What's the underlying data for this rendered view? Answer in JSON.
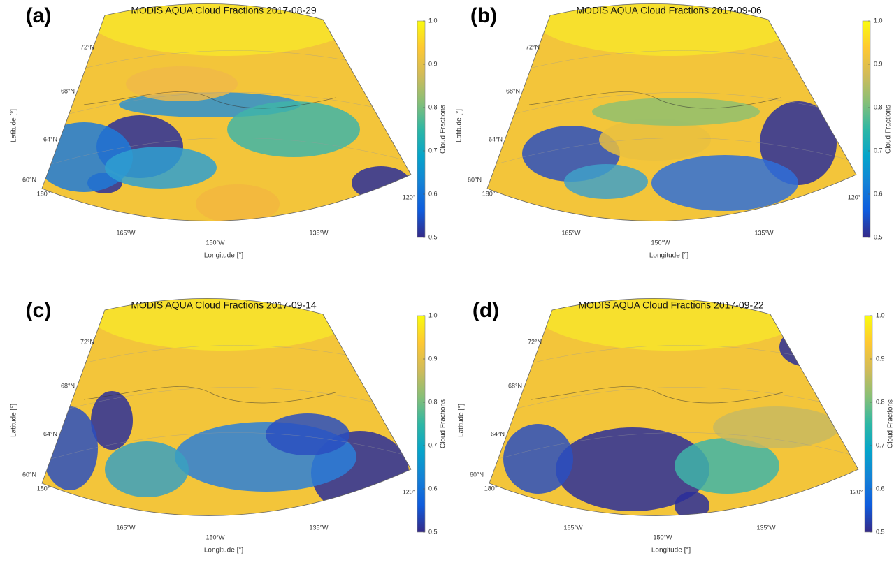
{
  "chart_data": [
    {
      "type": "map",
      "panel_label": "(a)",
      "title": "MODIS AQUA Cloud Fractions 2017-08-29",
      "xlabel": "Longitude [°]",
      "ylabel": "Latitude [°]",
      "colorbar_label": "Cloud Fractions",
      "lat_labels": [
        "72°N",
        "68°N",
        "64°N",
        "60°N"
      ],
      "lon_labels": [
        "180°",
        "165°W",
        "150°W",
        "135°W",
        "120°"
      ],
      "colormap": [
        "#352a87",
        "#0f5cdd",
        "#1481d6",
        "#06a4ca",
        "#2eb7a4",
        "#87bf77",
        "#d1bb59",
        "#fec832",
        "#f9fb0e"
      ],
      "ylim": [
        0.5,
        1
      ],
      "yticks": [
        0.5,
        0.6,
        0.7,
        0.8,
        0.9,
        {
          "value": 1,
          "label": "1.0"
        }
      ]
    },
    {
      "type": "map",
      "panel_label": "(b)",
      "title": "MODIS AQUA Cloud Fractions 2017-09-06",
      "xlabel": "Longitude [°]",
      "ylabel": "Latitude [°]",
      "colorbar_label": "Cloud Fractions",
      "lat_labels": [
        "72°N",
        "68°N",
        "64°N",
        "60°N"
      ],
      "lon_labels": [
        "180°",
        "165°W",
        "150°W",
        "135°W",
        "120°"
      ],
      "colormap": [
        "#352a87",
        "#0f5cdd",
        "#1481d6",
        "#06a4ca",
        "#2eb7a4",
        "#87bf77",
        "#d1bb59",
        "#fec832",
        "#f9fb0e"
      ],
      "ylim": [
        0.5,
        1
      ],
      "yticks": [
        0.5,
        0.6,
        0.7,
        0.8,
        0.9,
        {
          "value": 1,
          "label": "1.0"
        }
      ]
    },
    {
      "type": "map",
      "panel_label": "(c)",
      "title": "MODIS AQUA Cloud Fractions 2017-09-14",
      "xlabel": "Longitude [°]",
      "ylabel": "Latitude [°]",
      "colorbar_label": "Cloud Fractions",
      "lat_labels": [
        "72°N",
        "68°N",
        "64°N",
        "60°N"
      ],
      "lon_labels": [
        "180°",
        "165°W",
        "150°W",
        "135°W",
        "120°"
      ],
      "colormap": [
        "#352a87",
        "#0f5cdd",
        "#1481d6",
        "#06a4ca",
        "#2eb7a4",
        "#87bf77",
        "#d1bb59",
        "#fec832",
        "#f9fb0e"
      ],
      "ylim": [
        0.5,
        1
      ],
      "yticks": [
        0.5,
        0.6,
        0.7,
        0.8,
        0.9,
        {
          "value": 1,
          "label": "1.0"
        }
      ]
    },
    {
      "type": "map",
      "panel_label": "(d)",
      "title": "MODIS AQUA Cloud Fractions 2017-09-22",
      "xlabel": "Longitude [°]",
      "ylabel": "Latitude [°]",
      "colorbar_label": "Cloud Fractions",
      "lat_labels": [
        "72°N",
        "68°N",
        "64°N",
        "60°N"
      ],
      "lon_labels": [
        "180°",
        "165°W",
        "150°W",
        "135°W",
        "120°"
      ],
      "colormap": [
        "#352a87",
        "#0f5cdd",
        "#1481d6",
        "#06a4ca",
        "#2eb7a4",
        "#87bf77",
        "#d1bb59",
        "#fec832",
        "#f9fb0e"
      ],
      "ylim": [
        0.5,
        1
      ],
      "yticks": [
        0.5,
        0.6,
        0.7,
        0.8,
        0.9,
        {
          "value": 1,
          "label": "1.0"
        }
      ]
    }
  ]
}
